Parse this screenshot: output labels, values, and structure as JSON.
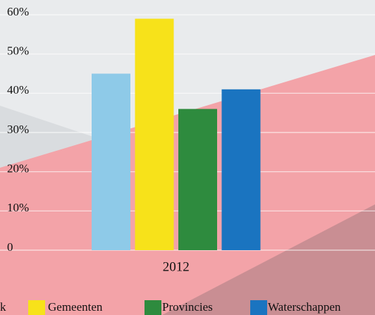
{
  "chart_data": {
    "type": "bar",
    "categories": [
      "2012"
    ],
    "series": [
      {
        "name": "k",
        "color": "#8ecae8",
        "values": [
          45
        ]
      },
      {
        "name": "Gemeenten",
        "color": "#f7e21a",
        "values": [
          59
        ]
      },
      {
        "name": "Provincies",
        "color": "#2e8b3e",
        "values": [
          36
        ]
      },
      {
        "name": "Waterschappen",
        "color": "#1a74c0",
        "values": [
          41
        ]
      }
    ],
    "ylim": [
      0,
      60
    ],
    "yticks": [
      0,
      {
        "value": 10,
        "label": "10%"
      },
      {
        "value": 20,
        "label": "20%"
      },
      {
        "value": 30,
        "label": "30%"
      },
      {
        "value": 40,
        "label": "40%"
      },
      {
        "value": 50,
        "label": "50%"
      },
      {
        "value": 60,
        "label": "60%"
      }
    ],
    "grid": true
  }
}
